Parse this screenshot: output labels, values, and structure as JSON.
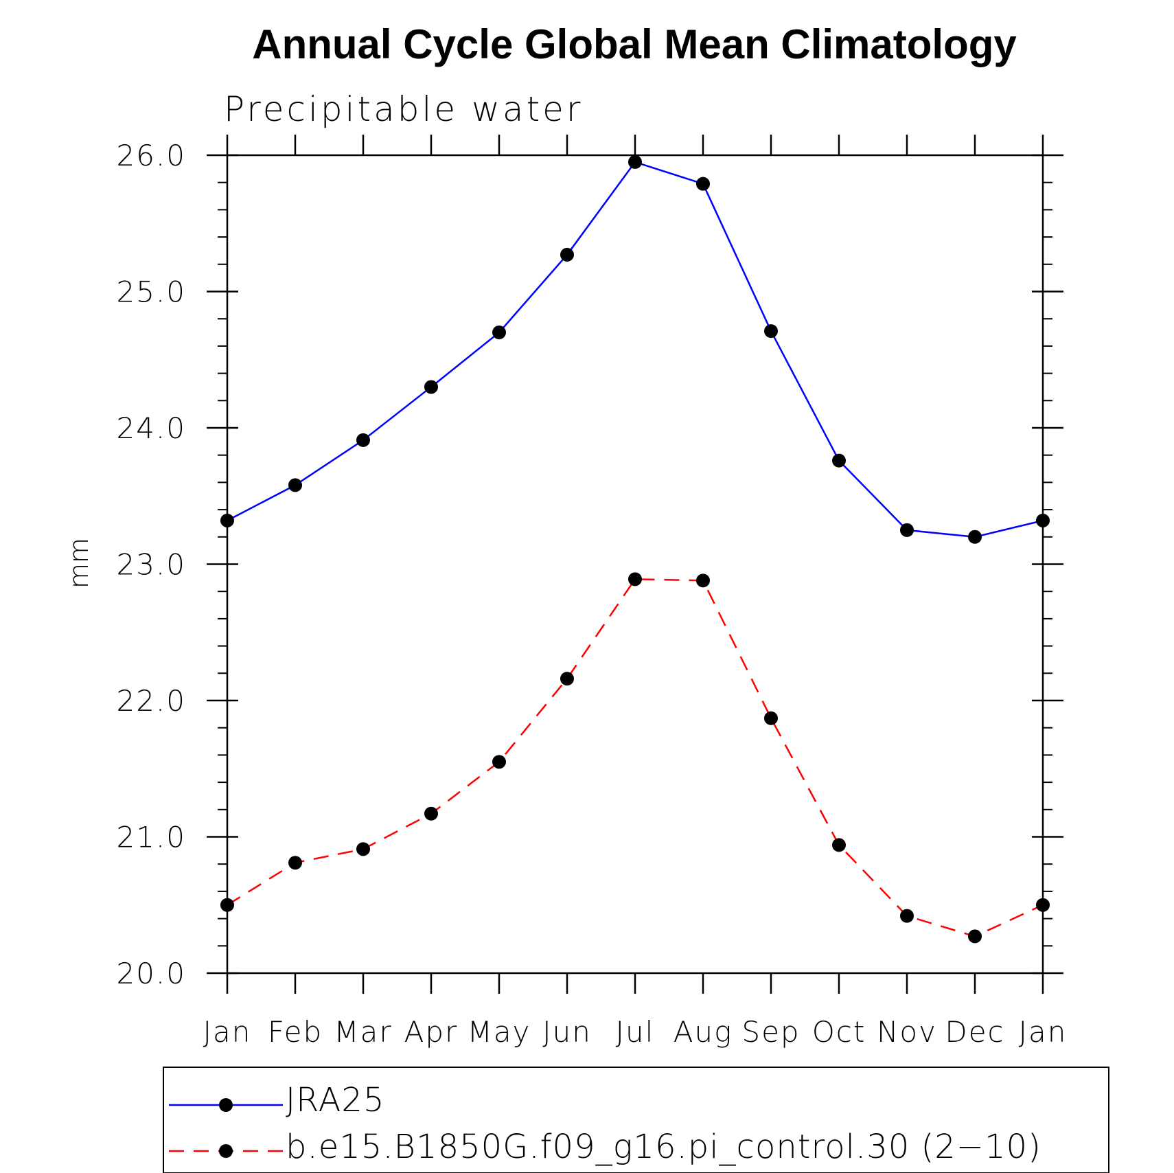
{
  "chart_data": {
    "type": "line",
    "title": "Annual Cycle Global Mean Climatology",
    "subtitle": "Precipitable water",
    "ylabel": "mm",
    "xlabel": "",
    "categories": [
      "Jan",
      "Feb",
      "Mar",
      "Apr",
      "May",
      "Jun",
      "Jul",
      "Aug",
      "Sep",
      "Oct",
      "Nov",
      "Dec",
      "Jan"
    ],
    "ylim": [
      20.0,
      26.0
    ],
    "yticks": [
      "20.0",
      "21.0",
      "22.0",
      "23.0",
      "24.0",
      "25.0",
      "26.0"
    ],
    "yminor_step": 0.2,
    "grid": false,
    "legend_position": "bottom",
    "series": [
      {
        "name": "JRA25",
        "color": "#0000ff",
        "dash": "solid",
        "marker": "filled-circle",
        "values": [
          23.32,
          23.58,
          23.91,
          24.3,
          24.7,
          25.27,
          25.95,
          25.79,
          24.71,
          23.76,
          23.25,
          23.2,
          23.32
        ]
      },
      {
        "name": "b.e15.B1850G.f09_g16.pi_control.30 (2−10)",
        "color": "#ff0000",
        "dash": "dashed",
        "marker": "filled-circle",
        "values": [
          20.5,
          20.81,
          20.91,
          21.17,
          21.55,
          22.16,
          22.89,
          22.88,
          21.87,
          20.94,
          20.42,
          20.27,
          20.5
        ]
      }
    ]
  }
}
